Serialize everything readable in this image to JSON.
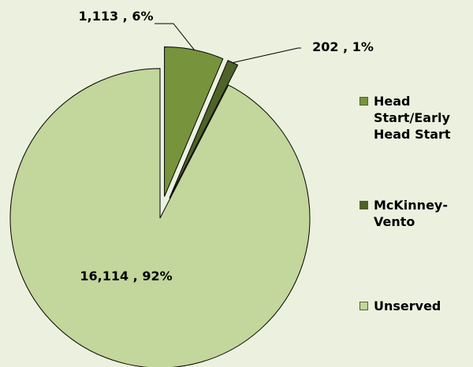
{
  "chart_data": {
    "type": "pie",
    "categories": [
      "Head Start/Early Head Start",
      "McKinney-Vento",
      "Unserved"
    ],
    "values": [
      1113,
      202,
      16114
    ],
    "value_labels": [
      "1,113 , 6%",
      "202 , 1%",
      "16,114 , 92%"
    ],
    "colors": [
      "#77933c",
      "#4f6228",
      "#c3d69b"
    ],
    "exploded": [
      true,
      true,
      false
    ],
    "legend": "right"
  }
}
